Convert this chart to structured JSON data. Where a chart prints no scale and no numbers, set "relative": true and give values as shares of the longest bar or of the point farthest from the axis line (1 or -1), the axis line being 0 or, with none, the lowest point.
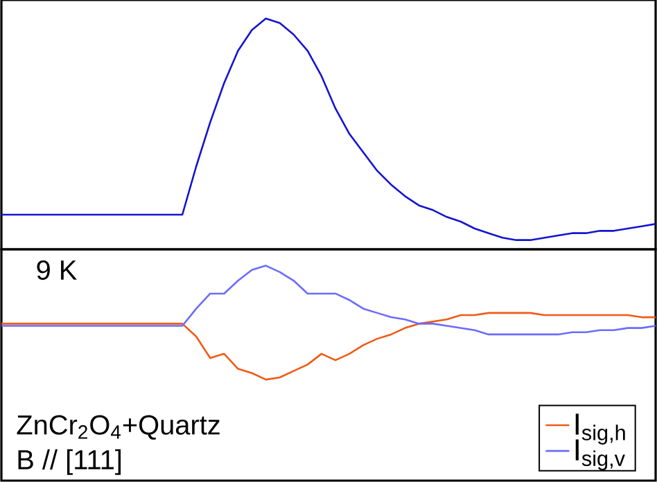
{
  "chart_data": [
    {
      "type": "line",
      "relative": true,
      "legend": false,
      "categories": [
        null,
        null,
        null,
        null,
        null,
        null,
        null,
        null,
        null,
        null,
        null,
        null,
        null,
        null,
        null,
        null,
        null,
        null,
        null,
        null,
        null,
        null,
        null,
        null,
        null,
        null,
        null,
        null,
        null,
        null,
        null,
        null,
        null,
        null,
        null,
        null,
        null,
        null,
        null,
        null,
        null,
        null,
        null,
        null,
        null,
        null,
        null,
        null
      ],
      "series": [
        {
          "color": "#1414d2",
          "values": [
            0.15,
            0.15,
            0.15,
            0.15,
            0.15,
            0.15,
            0.15,
            0.15,
            0.15,
            0.15,
            0.15,
            0.15,
            0.15,
            0.15,
            0.36,
            0.55,
            0.72,
            0.86,
            0.95,
            1.0,
            0.98,
            0.93,
            0.86,
            0.75,
            0.61,
            0.5,
            0.42,
            0.34,
            0.28,
            0.23,
            0.19,
            0.17,
            0.14,
            0.12,
            0.09,
            0.07,
            0.05,
            0.04,
            0.04,
            0.05,
            0.06,
            0.07,
            0.07,
            0.08,
            0.08,
            0.09,
            0.1,
            0.11
          ]
        }
      ]
    },
    {
      "type": "line",
      "relative": true,
      "legend": "bottom right",
      "annotations": [
        "9 K",
        "ZnCr$_{2}$O$_{4}$+Quartz",
        "B // [111]"
      ],
      "categories": [
        null,
        null,
        null,
        null,
        null,
        null,
        null,
        null,
        null,
        null,
        null,
        null,
        null,
        null,
        null,
        null,
        null,
        null,
        null,
        null,
        null,
        null,
        null,
        null,
        null,
        null,
        null,
        null,
        null,
        null,
        null,
        null,
        null,
        null,
        null,
        null,
        null,
        null,
        null,
        null,
        null,
        null,
        null,
        null,
        null,
        null,
        null,
        null
      ],
      "series": [
        {
          "name": "I$_{sig,h}$",
          "color": "#f05a14",
          "values": [
            0.73,
            0.73,
            0.73,
            0.73,
            0.73,
            0.73,
            0.73,
            0.73,
            0.73,
            0.73,
            0.73,
            0.73,
            0.73,
            0.73,
            0.67,
            0.57,
            0.59,
            0.52,
            0.5,
            0.47,
            0.48,
            0.51,
            0.54,
            0.59,
            0.56,
            0.59,
            0.63,
            0.66,
            0.68,
            0.71,
            0.73,
            0.74,
            0.75,
            0.77,
            0.77,
            0.78,
            0.78,
            0.78,
            0.78,
            0.77,
            0.77,
            0.77,
            0.77,
            0.77,
            0.77,
            0.77,
            0.76,
            0.76
          ]
        },
        {
          "name": "I$_{sig,v}$",
          "color": "#6b6bff",
          "values": [
            0.72,
            0.72,
            0.72,
            0.72,
            0.72,
            0.72,
            0.72,
            0.72,
            0.72,
            0.72,
            0.72,
            0.72,
            0.72,
            0.72,
            0.8,
            0.87,
            0.87,
            0.93,
            0.98,
            1.0,
            0.97,
            0.93,
            0.87,
            0.87,
            0.87,
            0.84,
            0.8,
            0.78,
            0.76,
            0.75,
            0.73,
            0.73,
            0.72,
            0.71,
            0.7,
            0.68,
            0.68,
            0.68,
            0.68,
            0.68,
            0.68,
            0.69,
            0.69,
            0.7,
            0.7,
            0.71,
            0.71,
            0.72
          ]
        }
      ]
    }
  ]
}
